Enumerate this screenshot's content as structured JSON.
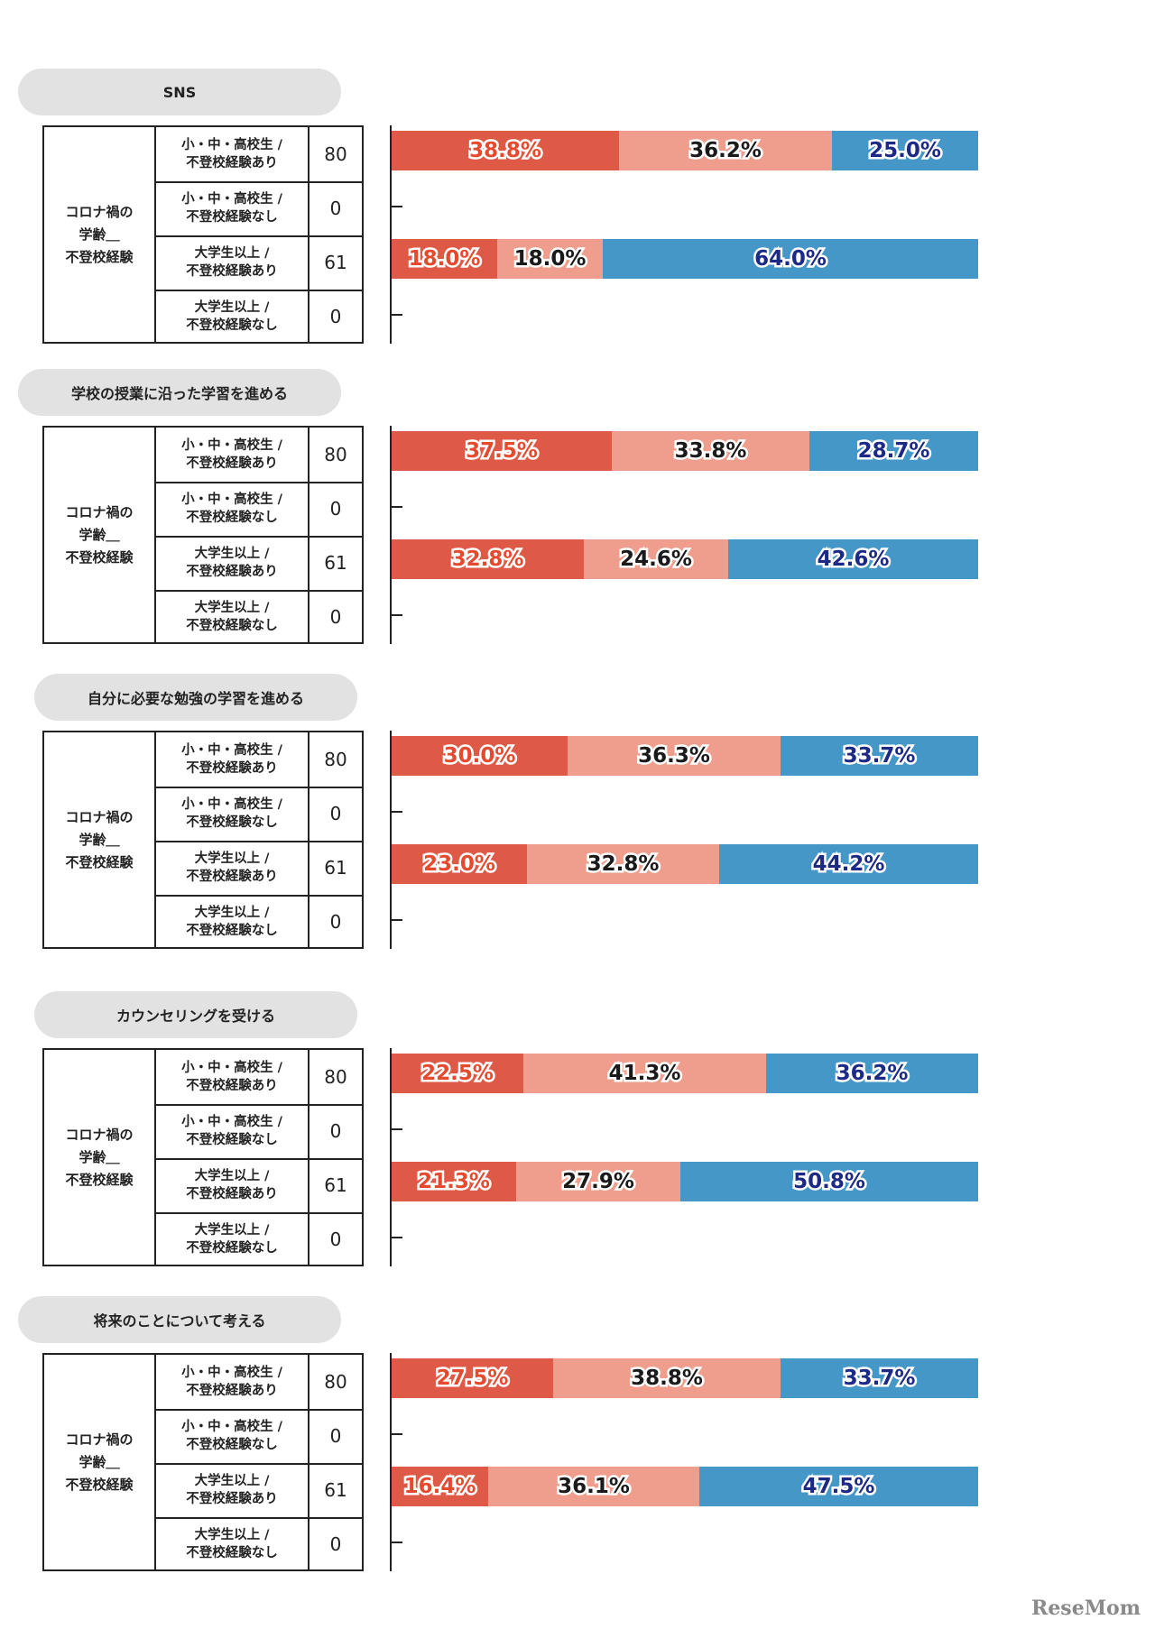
{
  "chart_data": {
    "type": "bar",
    "orientation": "horizontal",
    "stacked": true,
    "percent": true,
    "group_label": "コロナ禍の\n学齢＿\n不登校経験",
    "categories": [
      "小・中・高校生 /\n不登校経験あり",
      "小・中・高校生 /\n不登校経験なし",
      "大学生以上 /\n不登校経験あり",
      "大学生以上 /\n不登校経験なし"
    ],
    "n": [
      "80",
      "0",
      "61",
      "0"
    ],
    "segment_colors": [
      "#de5a47",
      "#ef9d8c",
      "#4497c6"
    ],
    "panels": [
      {
        "title": "SNS",
        "values": [
          [
            38.8,
            36.2,
            25.0
          ],
          null,
          [
            18.0,
            18.0,
            64.0
          ],
          null
        ],
        "labels": [
          [
            "38.8%",
            "36.2%",
            "25.0%"
          ],
          null,
          [
            "18.0%",
            "18.0%",
            "64.0%"
          ],
          null
        ]
      },
      {
        "title": "学校の授業に沿った学習を進める",
        "values": [
          [
            37.5,
            33.8,
            28.7
          ],
          null,
          [
            32.8,
            24.6,
            42.6
          ],
          null
        ],
        "labels": [
          [
            "37.5%",
            "33.8%",
            "28.7%"
          ],
          null,
          [
            "32.8%",
            "24.6%",
            "42.6%"
          ],
          null
        ]
      },
      {
        "title": "自分に必要な勉強の学習を進める",
        "values": [
          [
            30.0,
            36.3,
            33.7
          ],
          null,
          [
            23.0,
            32.8,
            44.2
          ],
          null
        ],
        "labels": [
          [
            "30.0%",
            "36.3%",
            "33.7%"
          ],
          null,
          [
            "23.0%",
            "32.8%",
            "44.2%"
          ],
          null
        ]
      },
      {
        "title": "カウンセリングを受ける",
        "values": [
          [
            22.5,
            41.3,
            36.2
          ],
          null,
          [
            21.3,
            27.9,
            50.8
          ],
          null
        ],
        "labels": [
          [
            "22.5%",
            "41.3%",
            "36.2%"
          ],
          null,
          [
            "21.3%",
            "27.9%",
            "50.8%"
          ],
          null
        ]
      },
      {
        "title": "将来のことについて考える",
        "values": [
          [
            27.5,
            38.8,
            33.7
          ],
          null,
          [
            16.4,
            36.1,
            47.5
          ],
          null
        ],
        "labels": [
          [
            "27.5%",
            "38.8%",
            "33.7%"
          ],
          null,
          [
            "16.4%",
            "36.1%",
            "47.5%"
          ],
          null
        ]
      }
    ]
  },
  "logo": {
    "text": "ReseMom"
  }
}
